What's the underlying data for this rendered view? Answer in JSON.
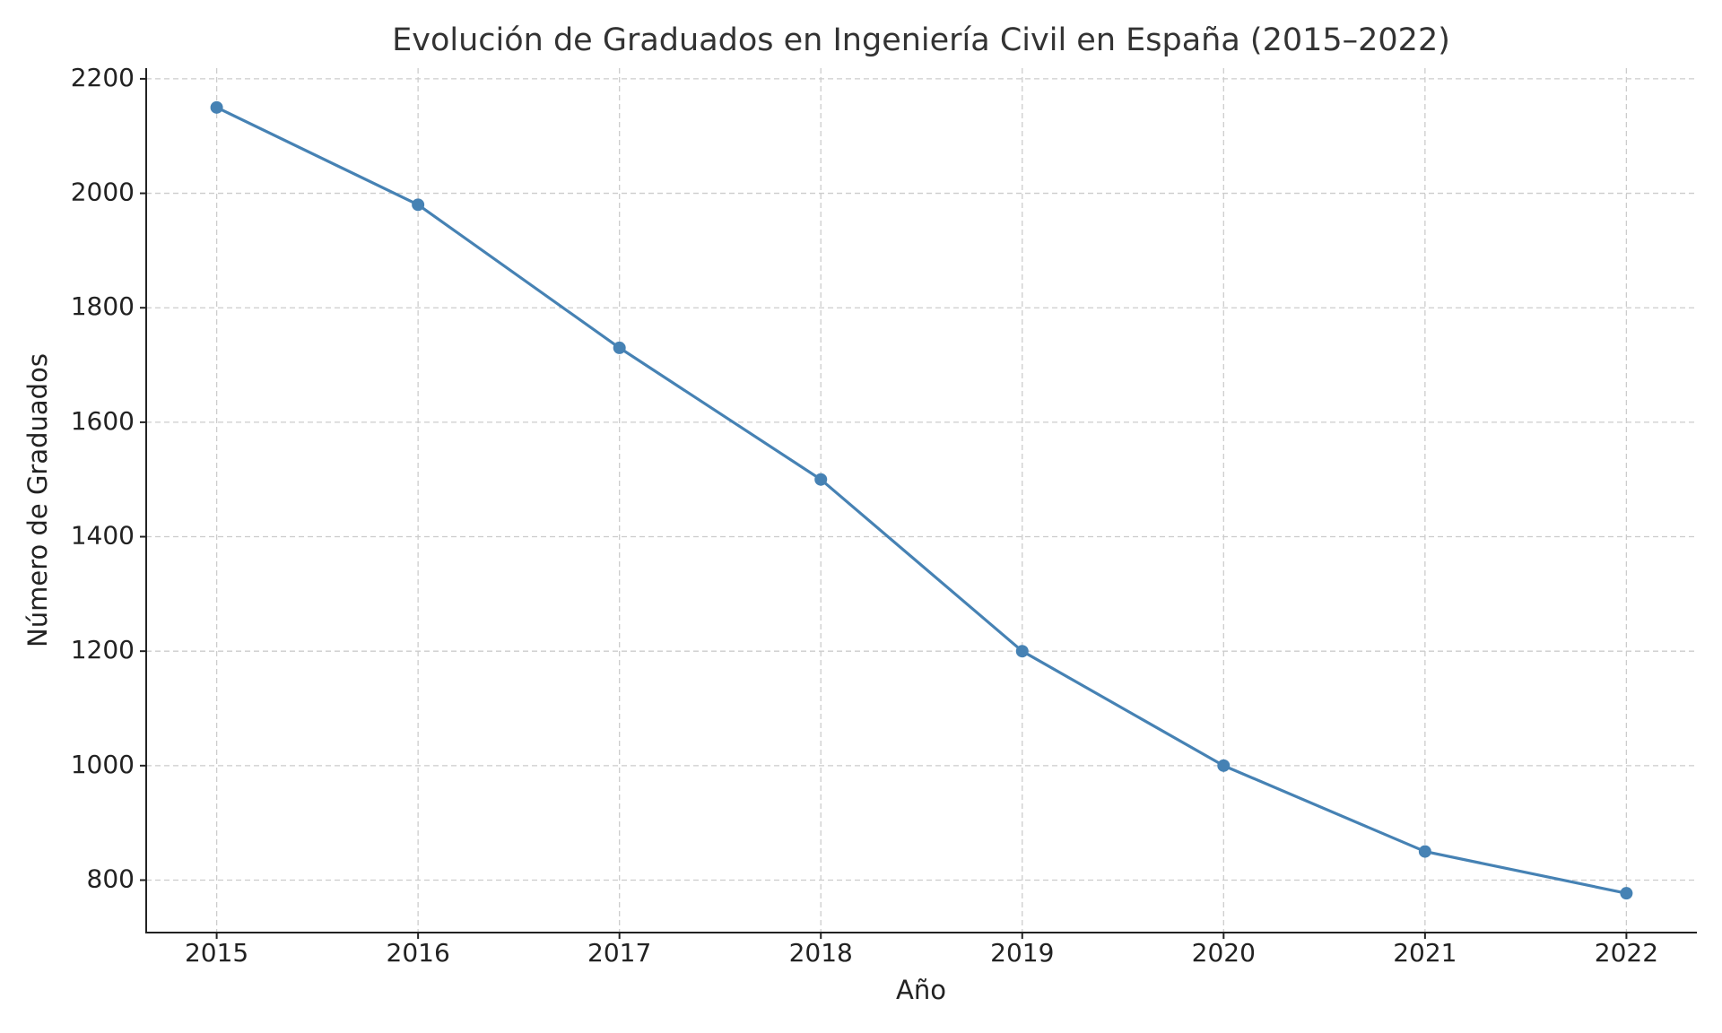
{
  "chart_data": {
    "type": "line",
    "title": "Evolución de Graduados en Ingeniería Civil en España (2015–2022)",
    "x_label": "Año",
    "y_label": "Número de Graduados",
    "x": [
      2015,
      2016,
      2017,
      2018,
      2019,
      2020,
      2021,
      2022
    ],
    "values": [
      2150,
      1980,
      1730,
      1500,
      1200,
      1000,
      850,
      777
    ],
    "color": "#4682b4",
    "xlim": [
      2014.65,
      2022.35
    ],
    "xticks": [
      2015,
      2016,
      2017,
      2018,
      2019,
      2020,
      2021,
      2022
    ],
    "ylim": [
      708.35,
      2218.65
    ],
    "yticks": [
      800,
      1000,
      1200,
      1400,
      1600,
      1800,
      2000,
      2200
    ],
    "grid": true,
    "markers": true
  }
}
